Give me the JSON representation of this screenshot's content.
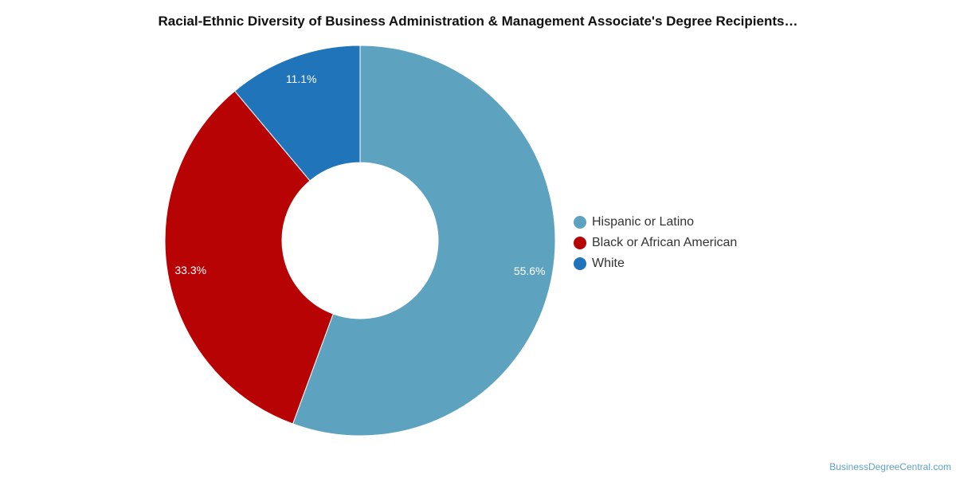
{
  "chart_data": {
    "type": "pie",
    "subtype": "donut",
    "title": "Racial-Ethnic Diversity of Business Administration & Management Associate's Degree Recipients…",
    "categories": [
      "Hispanic or Latino",
      "Black or African American",
      "White"
    ],
    "values": [
      55.6,
      33.3,
      11.1
    ],
    "value_labels": [
      "55.6%",
      "33.3%",
      "11.1%"
    ],
    "colors": [
      "#5da3c0",
      "#b70303",
      "#1f74ba"
    ],
    "legend_position": "right"
  },
  "watermark": "BusinessDegreeCentral.com"
}
